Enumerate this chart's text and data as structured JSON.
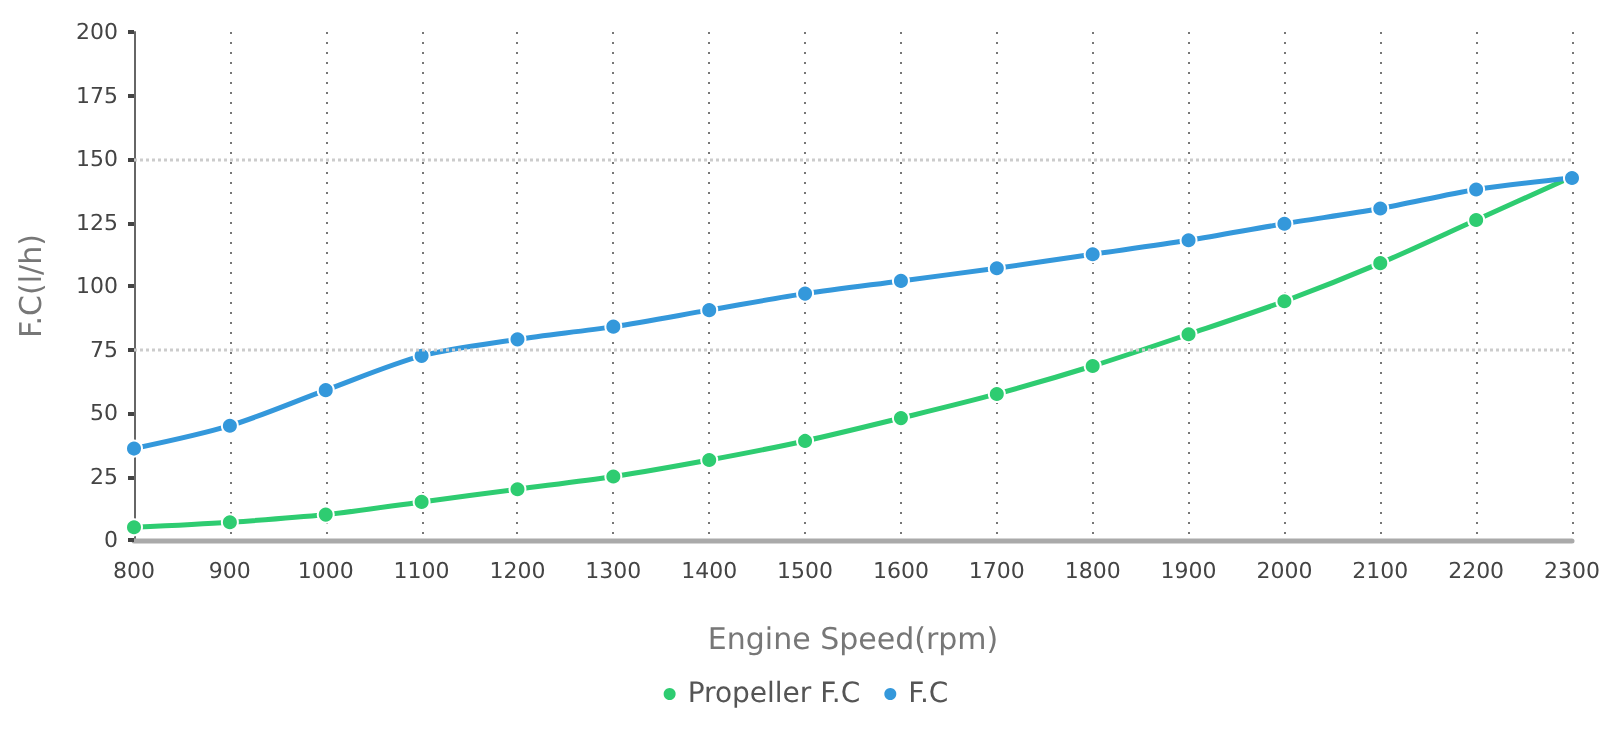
{
  "chart_data": {
    "type": "line",
    "xlabel": "Engine Speed(rpm)",
    "ylabel": "F.C(l/h)",
    "x": [
      800,
      900,
      1000,
      1100,
      1200,
      1300,
      1400,
      1500,
      1600,
      1700,
      1800,
      1900,
      2000,
      2100,
      2200,
      2300
    ],
    "series": [
      {
        "name": "Propeller F.C",
        "color": "#2ecc71",
        "values": [
          5,
          7,
          10,
          15,
          20,
          25,
          31.5,
          39,
          48,
          57.5,
          68.5,
          81,
          94,
          109,
          126,
          143
        ]
      },
      {
        "name": "F.C",
        "color": "#3498db",
        "values": [
          36,
          45,
          59,
          72.5,
          79,
          84,
          90.5,
          97,
          102,
          107,
          112.5,
          118,
          124.5,
          130.5,
          138,
          142.5
        ]
      }
    ],
    "xlim": [
      800,
      2300
    ],
    "xticks": [
      800,
      900,
      1000,
      1100,
      1200,
      1300,
      1400,
      1500,
      1600,
      1700,
      1800,
      1900,
      2000,
      2100,
      2200,
      2300
    ],
    "ylim": [
      0,
      200
    ],
    "yticks": [
      0,
      25,
      50,
      75,
      100,
      125,
      150,
      175,
      200
    ],
    "grid": "x",
    "legend": "bottom",
    "marker": "circle",
    "line_style": "solid",
    "ref_lines": [
      {
        "axis": "y",
        "value": 75,
        "color": "#cccccc",
        "line_style": "dotted"
      },
      {
        "axis": "y",
        "value": 150,
        "color": "#cccccc",
        "line_style": "dotted"
      }
    ]
  }
}
